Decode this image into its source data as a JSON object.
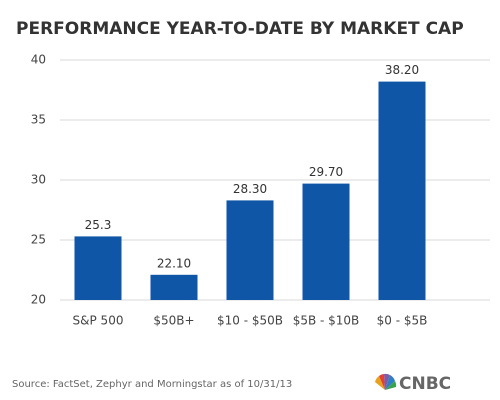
{
  "chart_data": {
    "type": "bar",
    "title": "PERFORMANCE YEAR-TO-DATE BY MARKET CAP",
    "categories": [
      "S&P 500",
      "$50B+",
      "$10 - $50B",
      "$5B - $10B",
      "$0 - $5B"
    ],
    "values": [
      25.3,
      22.1,
      28.3,
      29.7,
      38.2
    ],
    "value_labels": [
      "25.3",
      "22.10",
      "28.30",
      "29.70",
      "38.20"
    ],
    "color": "#0f56a6",
    "ylim": [
      20,
      40
    ],
    "yticks": [
      20,
      25,
      30,
      35,
      40
    ],
    "grid": true,
    "source": "Source: FactSet, Zephyr and Morningstar as of 10/31/13",
    "logo": "CNBC"
  }
}
